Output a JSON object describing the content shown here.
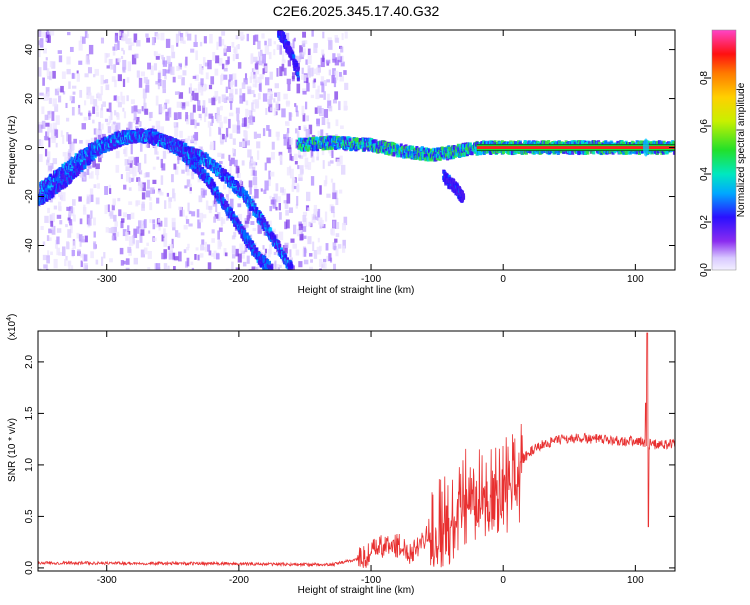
{
  "page": {
    "title": "C2E6.2025.345.17.40.G32"
  },
  "colors": {
    "snr_line": "#e83030",
    "trace_core": "#ff1e1e",
    "trace_edge": "#22cc33",
    "axis": "#000000"
  },
  "chart_data": [
    {
      "type": "heatmap",
      "title": "C2E6.2025.345.17.40.G32",
      "xlabel": "Height of straight line (km)",
      "ylabel": "Frequency (Hz)",
      "xlim": [
        -352,
        130
      ],
      "ylim": [
        -50,
        48
      ],
      "x_ticks": [
        -300,
        -200,
        -100,
        0,
        100
      ],
      "y_ticks": [
        -40,
        -20,
        0,
        20,
        40
      ],
      "colorbar": {
        "label": "Normalized spectral amplitude",
        "range": [
          0,
          1
        ],
        "ticks": [
          "0.0",
          "0.2",
          "0.4",
          "0.6",
          "0.8"
        ],
        "tick_values": [
          0.0,
          0.2,
          0.4,
          0.6,
          0.8
        ]
      },
      "noise_region_x": [
        -352,
        -120
      ],
      "features": [
        {
          "name": "",
          "points": [
            [
              -352,
              -22
            ],
            [
              -330,
              -13
            ],
            [
              -305,
              0
            ],
            [
              -285,
              4
            ],
            [
              -265,
              5
            ],
            [
              -245,
              -1
            ],
            [
              -225,
              -12
            ],
            [
              -205,
              -28
            ],
            [
              -185,
              -45
            ],
            [
              -175,
              -50
            ]
          ],
          "intensity": 0.35
        },
        {
          "name": "",
          "points": [
            [
              -350,
              -17
            ],
            [
              -330,
              -8
            ],
            [
              -310,
              0
            ],
            [
              -290,
              4
            ],
            [
              -275,
              5
            ],
            [
              -258,
              3
            ],
            [
              -240,
              -1
            ],
            [
              -225,
              -5
            ],
            [
              -210,
              -12
            ],
            [
              -195,
              -20
            ],
            [
              -180,
              -32
            ],
            [
              -165,
              -45
            ],
            [
              -160,
              -50
            ]
          ],
          "intensity": 0.45
        },
        {
          "name": "",
          "points": [
            [
              -170,
              48
            ],
            [
              -160,
              38
            ],
            [
              -155,
              30
            ]
          ],
          "intensity": 0.2
        },
        {
          "name": "",
          "points": [
            [
              -155,
              1
            ],
            [
              -130,
              2
            ],
            [
              -100,
              1
            ],
            [
              -70,
              -2
            ],
            [
              -50,
              -3
            ],
            [
              -30,
              -1
            ],
            [
              -15,
              0
            ],
            [
              0,
              0
            ],
            [
              130,
              0
            ]
          ],
          "intensity": 0.95
        },
        {
          "name": "",
          "points": [
            [
              -45,
              -12
            ],
            [
              -35,
              -17
            ],
            [
              -30,
              -21
            ]
          ],
          "intensity": 0.2
        }
      ]
    },
    {
      "type": "line",
      "xlabel": "Height of straight line (km)",
      "ylabel": "SNR (10 * v/v)",
      "y_multiplier": "(x10",
      "y_multiplier_exp": "4",
      "y_multiplier_close": ")",
      "xlim": [
        -352,
        130
      ],
      "ylim": [
        -0.03,
        2.3
      ],
      "x_ticks": [
        -300,
        -200,
        -100,
        0,
        100
      ],
      "y_ticks": [
        "0.0",
        "0.5",
        "1.0",
        "1.5",
        "2.0"
      ],
      "y_tick_values": [
        0.0,
        0.5,
        1.0,
        1.5,
        2.0
      ],
      "envelope": [
        [
          -352,
          0.05
        ],
        [
          -200,
          0.04
        ],
        [
          -130,
          0.03
        ],
        [
          -105,
          0.1
        ],
        [
          -95,
          0.2
        ],
        [
          -80,
          0.22
        ],
        [
          -70,
          0.15
        ],
        [
          -60,
          0.3
        ],
        [
          -50,
          0.45
        ],
        [
          -40,
          0.65
        ],
        [
          -30,
          0.78
        ],
        [
          -20,
          0.82
        ],
        [
          -10,
          0.88
        ],
        [
          0,
          0.88
        ],
        [
          10,
          1.0
        ],
        [
          20,
          1.12
        ],
        [
          30,
          1.2
        ],
        [
          45,
          1.25
        ],
        [
          60,
          1.26
        ],
        [
          80,
          1.24
        ],
        [
          100,
          1.23
        ],
        [
          108,
          1.22
        ],
        [
          112,
          1.2
        ],
        [
          130,
          1.2
        ]
      ],
      "spike": {
        "x": 109,
        "max": 2.28,
        "min": 0.4
      }
    }
  ]
}
